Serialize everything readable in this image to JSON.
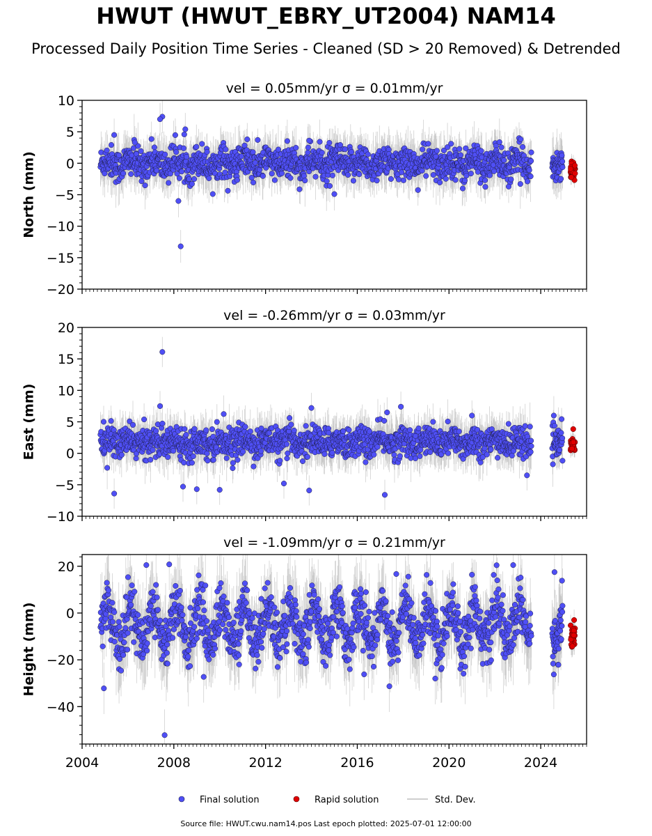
{
  "title": "HWUT (HWUT_EBRY_UT2004) NAM14",
  "subtitle": "Processed Daily Position Time Series - Cleaned (SD > 20 Removed) & Detrended",
  "footer": "Source file: HWUT.cwu.nam14.pos  Last epoch plotted: 2025-07-01 12:00:00",
  "legend": {
    "final": "Final solution",
    "rapid": "Rapid solution",
    "std": "Std. Dev.",
    "placement": "bottom-center"
  },
  "colors": {
    "final": "#4f4ff5",
    "final_edge": "#1e1e4a",
    "rapid": "#e00000",
    "std": "#bdbdbd"
  },
  "chart_data": [
    {
      "type": "scatter",
      "title": "vel = 0.05mm/yr   σ = 0.01mm/yr",
      "ylabel": "North (mm)",
      "xlim": [
        2004.0,
        2026.0
      ],
      "ylim": [
        -20,
        10
      ],
      "yticks": [
        "10",
        "5",
        "0",
        "−5",
        "−10",
        "−15",
        "−20"
      ],
      "ytick_values": [
        10,
        5,
        0,
        -5,
        -10,
        -15,
        -20
      ],
      "xticks": [
        "2004",
        "2008",
        "2012",
        "2016",
        "2020",
        "2024"
      ],
      "xtick_values": [
        2004,
        2008,
        2012,
        2016,
        2020,
        2024
      ],
      "grid": false,
      "final_series": {
        "time_ranges": [
          [
            2004.8,
            2023.6
          ],
          [
            2024.5,
            2024.95
          ]
        ],
        "mean": 0,
        "spread": 1.3,
        "annual_amplitude": 0.6
      },
      "rapid_series": {
        "time_range": [
          2025.3,
          2025.5
        ],
        "mean": -1.0,
        "spread": 0.8
      },
      "outliers": [
        [
          2005.4,
          4.5
        ],
        [
          2007.5,
          7.4
        ],
        [
          2007.4,
          7.0
        ],
        [
          2008.2,
          -6.0
        ],
        [
          2008.3,
          -13.2
        ],
        [
          2008.5,
          5.4
        ],
        [
          2011.2,
          3.8
        ],
        [
          2013.9,
          3.6
        ],
        [
          2015.0,
          -4.9
        ],
        [
          2014.8,
          -3.6
        ],
        [
          2020.6,
          -4.0
        ],
        [
          2006.3,
          3.3
        ],
        [
          2022.6,
          -3.7
        ]
      ]
    },
    {
      "type": "scatter",
      "title": "vel = -0.26mm/yr   σ = 0.03mm/yr",
      "ylabel": "East (mm)",
      "xlim": [
        2004.0,
        2026.0
      ],
      "ylim": [
        -10,
        20
      ],
      "yticks": [
        "20",
        "15",
        "10",
        "5",
        "0",
        "−5",
        "−10"
      ],
      "ytick_values": [
        20,
        15,
        10,
        5,
        0,
        -5,
        -10
      ],
      "xticks": [
        "2004",
        "2008",
        "2012",
        "2016",
        "2020",
        "2024"
      ],
      "xtick_values": [
        2004,
        2008,
        2012,
        2016,
        2020,
        2024
      ],
      "grid": false,
      "final_series": {
        "time_ranges": [
          [
            2004.8,
            2023.6
          ],
          [
            2024.5,
            2024.95
          ]
        ],
        "mean": 1.8,
        "spread": 1.2,
        "annual_amplitude": 0.4
      },
      "rapid_series": {
        "time_range": [
          2025.3,
          2025.5
        ],
        "mean": 1.0,
        "spread": 0.8
      },
      "outliers": [
        [
          2007.5,
          16.1
        ],
        [
          2005.4,
          -6.4
        ],
        [
          2007.4,
          7.5
        ],
        [
          2008.4,
          -5.3
        ],
        [
          2009.0,
          -5.7
        ],
        [
          2010.0,
          -5.8
        ],
        [
          2012.8,
          -4.8
        ],
        [
          2013.9,
          -5.9
        ],
        [
          2014.0,
          7.2
        ],
        [
          2017.3,
          6.5
        ],
        [
          2017.9,
          7.4
        ],
        [
          2017.2,
          -6.6
        ],
        [
          2023.4,
          -3.5
        ],
        [
          2021.0,
          6.0
        ]
      ]
    },
    {
      "type": "scatter",
      "title": "vel = -1.09mm/yr   σ = 0.21mm/yr",
      "ylabel": "Height (mm)",
      "xlim": [
        2004.0,
        2026.0
      ],
      "ylim": [
        -56,
        25
      ],
      "yticks": [
        "20",
        "0",
        "−20",
        "−40"
      ],
      "ytick_values": [
        20,
        0,
        -20,
        -40
      ],
      "xticks": [
        "2004",
        "2008",
        "2012",
        "2016",
        "2020",
        "2024"
      ],
      "xtick_values": [
        2004,
        2008,
        2012,
        2016,
        2020,
        2024
      ],
      "grid": false,
      "final_series": {
        "time_ranges": [
          [
            2004.8,
            2023.6
          ],
          [
            2024.5,
            2024.95
          ]
        ],
        "mean": -5,
        "spread": 5.5,
        "annual_amplitude": 8
      },
      "rapid_series": {
        "time_range": [
          2025.3,
          2025.5
        ],
        "mean": -10,
        "spread": 3
      },
      "outliers": [
        [
          2004.95,
          -32.2
        ],
        [
          2007.6,
          -52.2
        ],
        [
          2006.8,
          20.5
        ],
        [
          2007.8,
          20.8
        ],
        [
          2009.3,
          -27.3
        ],
        [
          2016.3,
          -26.2
        ],
        [
          2017.4,
          -31.3
        ],
        [
          2017.7,
          16.7
        ],
        [
          2019.4,
          -28.0
        ],
        [
          2022.8,
          20.5
        ],
        [
          2024.6,
          17.5
        ],
        [
          2005.7,
          -24.6
        ]
      ]
    }
  ]
}
